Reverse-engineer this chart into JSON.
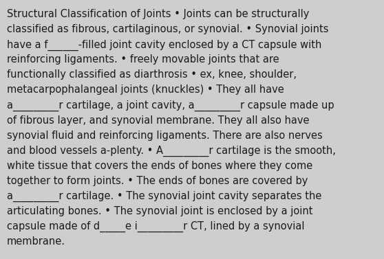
{
  "background_color": "#cecece",
  "text_color": "#1a1a1a",
  "font_size": 10.5,
  "font_family": "DejaVu Sans",
  "lines": [
    "Structural Classification of Joints • Joints can be structurally",
    "classified as fibrous, cartilaginous, or synovial. • Synovial joints",
    "have a f______-filled joint cavity enclosed by a CT capsule with",
    "reinforcing ligaments. • freely movable joints that are",
    "functionally classified as diarthrosis • ex, knee, shoulder,",
    "metacarpophalangeal joints (knuckles) • They all have",
    "a_________r cartilage, a joint cavity, a_________r capsule made up",
    "of fibrous layer, and synovial membrane. They all also have",
    "synovial fluid and reinforcing ligaments. There are also nerves",
    "and blood vessels a-plenty. • A_________r cartilage is the smooth,",
    "white tissue that covers the ends of bones where they come",
    "together to form joints. • The ends of bones are covered by",
    "a_________r cartilage. • The synovial joint cavity separates the",
    "articulating bones. • The synovial joint is enclosed by a joint",
    "capsule made of d_____e i_________r CT, lined by a synovial",
    "membrane."
  ]
}
